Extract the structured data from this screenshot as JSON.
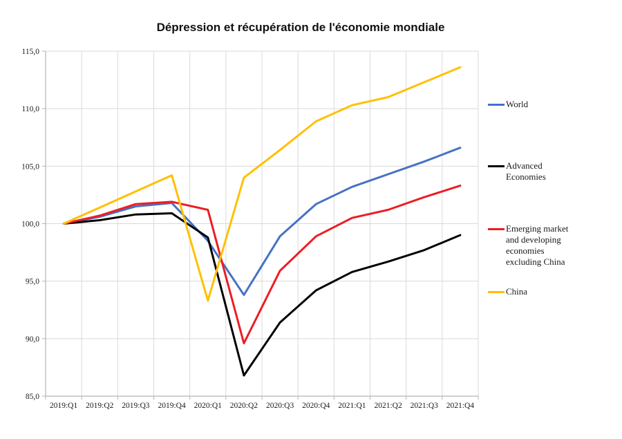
{
  "page": {
    "background": "#ffffff"
  },
  "chart_data": {
    "type": "line",
    "title": "Dépression et récupération de l'économie mondiale",
    "categories": [
      "2019:Q1",
      "2019:Q2",
      "2019:Q3",
      "2019:Q4",
      "2020:Q1",
      "2020:Q2",
      "2020:Q3",
      "2020:Q4",
      "2021:Q1",
      "2021:Q2",
      "2021:Q3",
      "2021:Q4"
    ],
    "series": [
      {
        "name": "World",
        "legend_lines": [
          "World"
        ],
        "color": "#4472C4",
        "values": [
          100.0,
          100.6,
          101.5,
          101.8,
          98.5,
          93.8,
          98.9,
          101.7,
          103.2,
          104.3,
          105.4,
          106.6
        ]
      },
      {
        "name": "Advanced Economies",
        "legend_lines": [
          "Advanced",
          "Economies"
        ],
        "color": "#000000",
        "values": [
          100.0,
          100.3,
          100.8,
          100.9,
          98.8,
          86.8,
          91.4,
          94.2,
          95.8,
          96.7,
          97.7,
          99.0
        ]
      },
      {
        "name": "Emerging market and developing economies excluding China",
        "legend_lines": [
          "Emerging market",
          "and developing",
          "economies",
          "excluding China"
        ],
        "color": "#ED1C24",
        "values": [
          100.0,
          100.7,
          101.7,
          101.9,
          101.2,
          89.6,
          95.9,
          98.9,
          100.5,
          101.2,
          102.3,
          103.3
        ]
      },
      {
        "name": "China",
        "legend_lines": [
          "China"
        ],
        "color": "#FFC000",
        "values": [
          100.0,
          101.4,
          102.8,
          104.2,
          93.3,
          104.0,
          106.4,
          108.9,
          110.3,
          111.0,
          112.3,
          113.6
        ]
      }
    ],
    "y_axis": {
      "min": 85,
      "max": 115,
      "step": 5,
      "tick_labels": [
        "85,0",
        "90,0",
        "95,0",
        "100,0",
        "105,0",
        "110,0",
        "115,0"
      ]
    },
    "legend_position": "right",
    "grid": true
  },
  "colors": {
    "gridline": "#d9d9d9",
    "axis": "#b3b3b3",
    "tick": "#b3b3b3",
    "text": "#1a1a1a"
  }
}
